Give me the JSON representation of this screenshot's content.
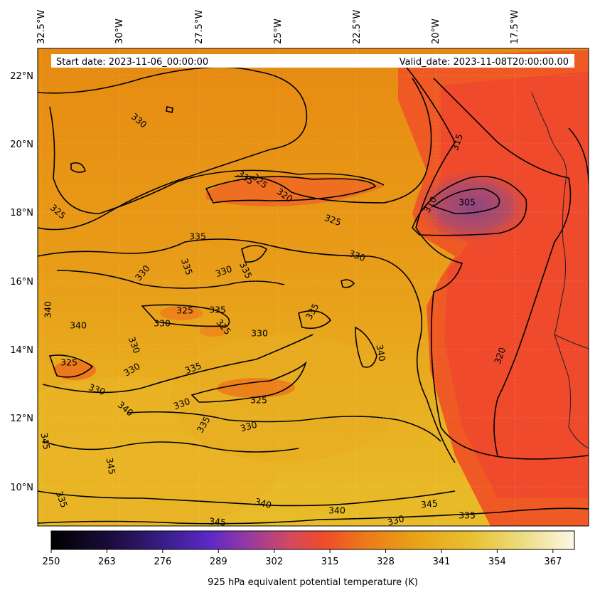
{
  "map": {
    "start_date": "Start date: 2023-11-06_00:00:00",
    "valid_date": "Valid_date: 2023-11-08T20:00:00.00",
    "lon_labels": [
      "32.5°W",
      "30°W",
      "27.5°W",
      "25°W",
      "22.5°W",
      "20°W",
      "17.5°W"
    ],
    "lat_labels": [
      "22°N",
      "20°N",
      "18°N",
      "16°N",
      "14°N",
      "12°N",
      "10°N"
    ],
    "contour_labels": [
      "330",
      "335",
      "325",
      "320",
      "325",
      "330",
      "305",
      "310",
      "315",
      "335",
      "335",
      "330",
      "335",
      "330",
      "340",
      "325",
      "335",
      "325",
      "330",
      "330",
      "340",
      "325",
      "330",
      "335",
      "330",
      "340",
      "320",
      "330",
      "325",
      "335",
      "330",
      "335",
      "345",
      "340",
      "345",
      "335",
      "340",
      "340",
      "345",
      "345",
      "335",
      "330",
      "325",
      "330"
    ],
    "colors": {
      "warm_yellow": "#e8b020",
      "orange": "#e88a10",
      "red_orange": "#f04a2c",
      "purple_core": "#9a4a7a",
      "contour": "#000000",
      "coastline": "#202020"
    }
  },
  "colorbar": {
    "title": "925 hPa equivalent potential temperature (K)",
    "ticks": [
      "250",
      "263",
      "276",
      "289",
      "302",
      "315",
      "328",
      "341",
      "354",
      "367"
    ],
    "range": [
      250,
      372
    ]
  }
}
